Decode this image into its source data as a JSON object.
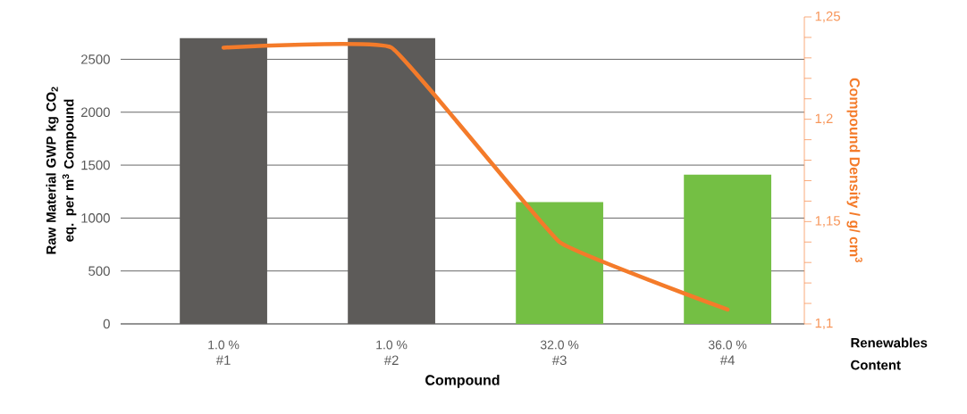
{
  "chart_data": {
    "type": "bar",
    "categories": [
      "#1",
      "#2",
      "#3",
      "#4"
    ],
    "series": [
      {
        "colors": [
          "#5d5b59",
          "#5d5b59",
          "#74bf44",
          "#74bf44"
        ],
        "values": [
          2700,
          2700,
          1150,
          1410
        ]
      },
      {
        "type": "line",
        "axis": "y2",
        "color": "#f47b2a",
        "values": [
          1.235,
          1.235,
          1.14,
          1.107
        ]
      }
    ],
    "xlabel": "Compound",
    "ylabel": "Raw Material GWP kg CO$_{2}$ eq. per m$^{3}$ Compound",
    "y2label": "Compound Density / g/ cm$^{3}$",
    "ylim": [
      0,
      2900
    ],
    "yticks": [
      0,
      500,
      1000,
      1500,
      2000,
      2500
    ],
    "y2lim": [
      1.1,
      1.25
    ],
    "y2ticks": [
      {
        "value": 1.1,
        "label": "1,1"
      },
      {
        "value": 1.15,
        "label": "1,15"
      },
      {
        "value": 1.2,
        "label": "1,2"
      },
      {
        "value": 1.25,
        "label": "1,25"
      }
    ],
    "grid": "y",
    "annotations": [
      "1.0 %",
      "1.0 %",
      "32.0 %",
      "36.0 %",
      "Renewables Content"
    ]
  }
}
